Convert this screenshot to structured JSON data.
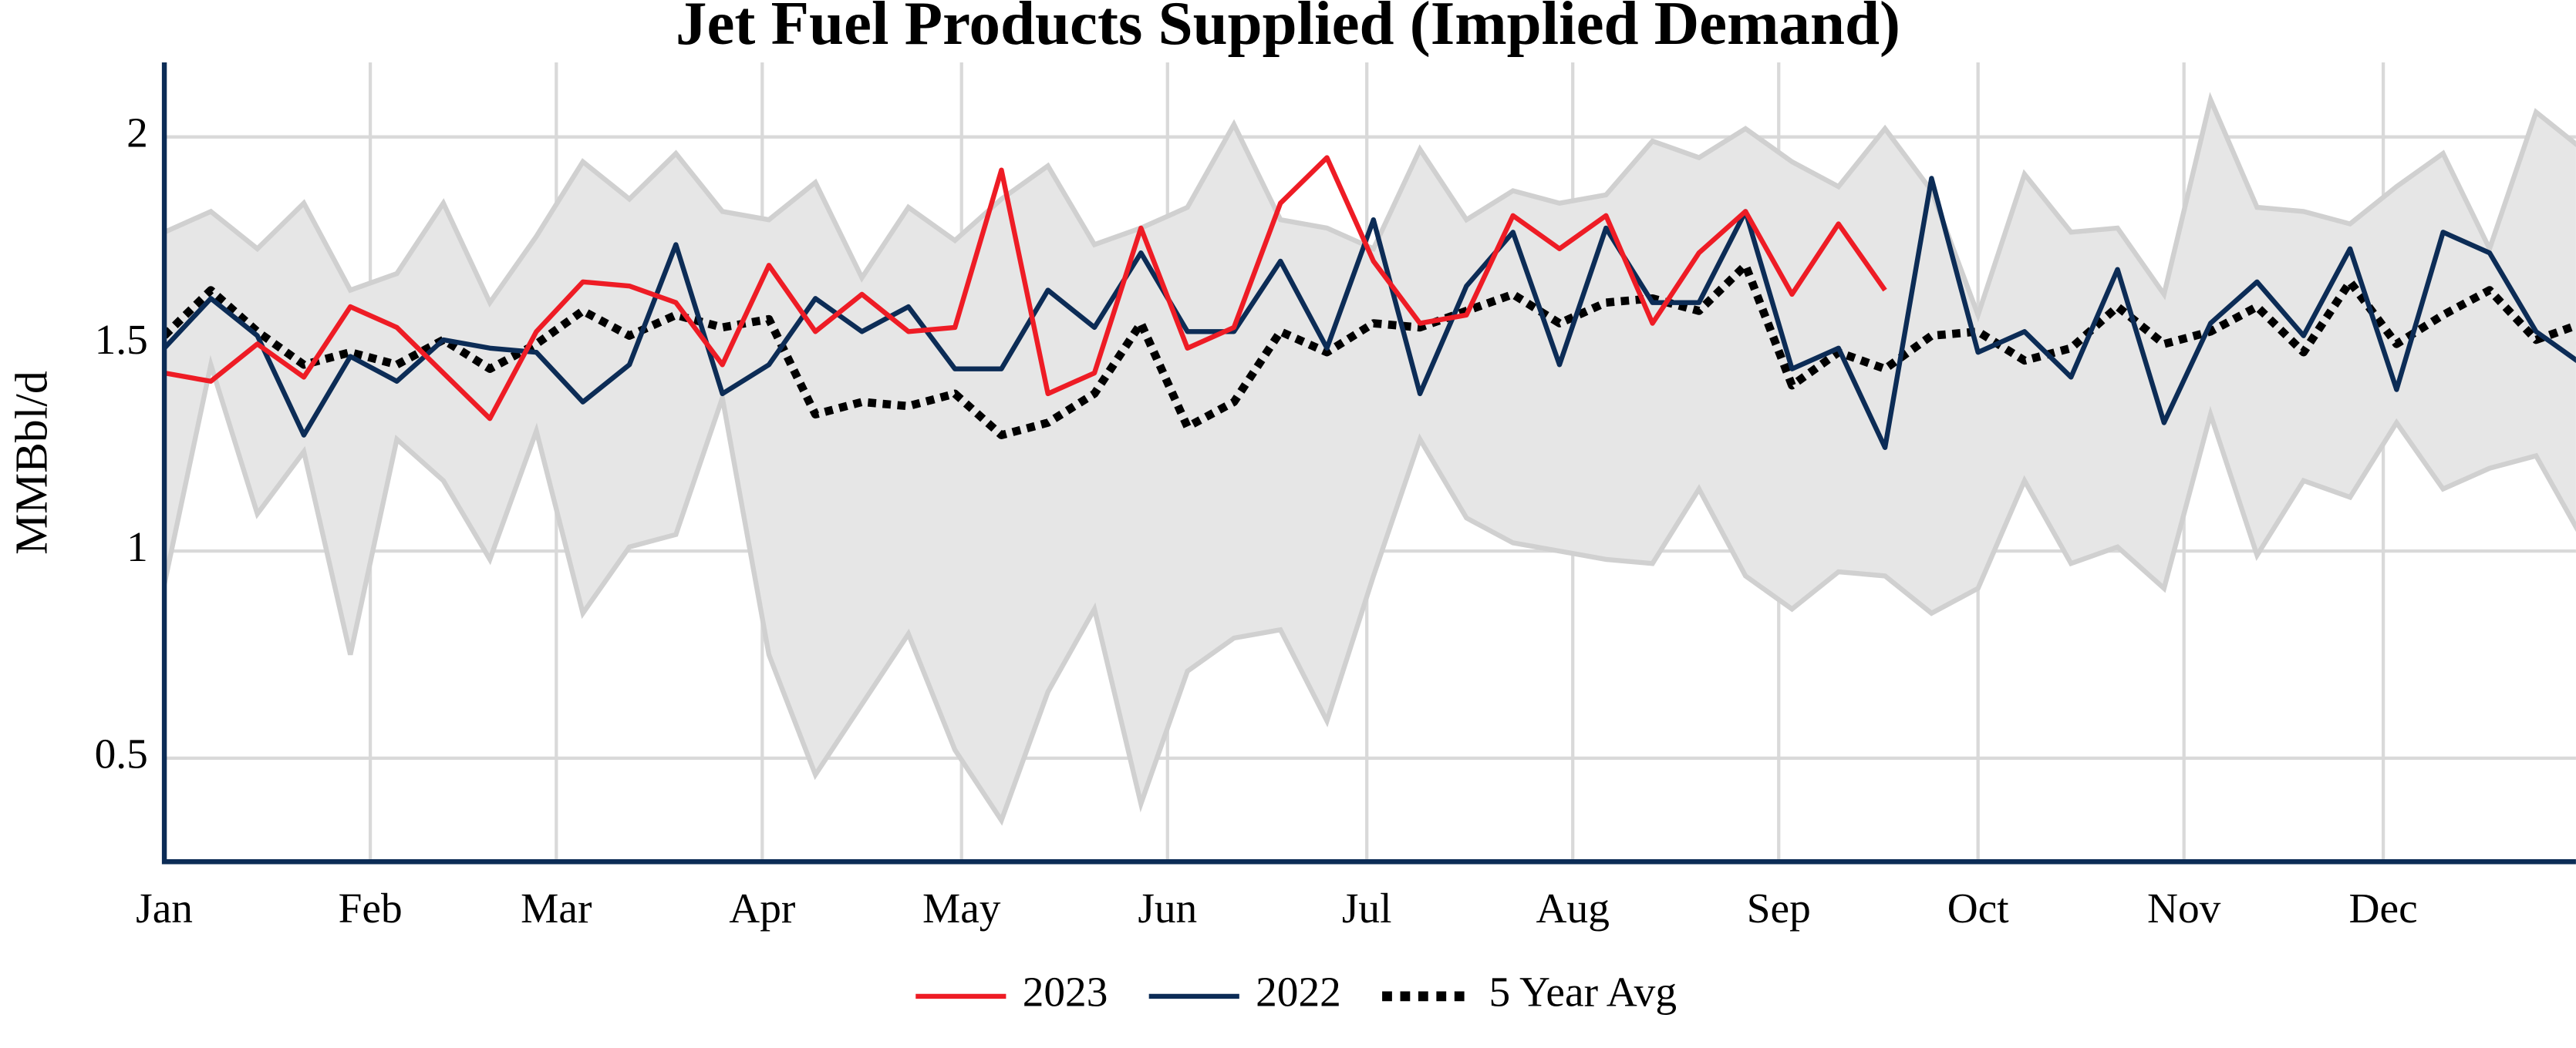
{
  "chart_data": {
    "type": "line",
    "title": "Jet Fuel Products Supplied (Implied Demand)",
    "y_label": "MMBbl/d",
    "x": [
      0,
      7,
      14,
      21,
      28,
      35,
      42,
      49,
      56,
      63,
      70,
      77,
      84,
      91,
      98,
      105,
      112,
      119,
      126,
      133,
      140,
      147,
      154,
      161,
      168,
      175,
      182,
      189,
      196,
      203,
      210,
      217,
      224,
      231,
      238,
      245,
      252,
      259,
      266,
      273,
      280,
      287,
      294,
      301,
      308,
      315,
      322,
      329,
      336,
      343,
      350,
      357,
      364
    ],
    "xlim": [
      0,
      363
    ],
    "xticks": [
      {
        "value": 0,
        "label": "Jan"
      },
      {
        "value": 31,
        "label": "Feb"
      },
      {
        "value": 59,
        "label": "Mar"
      },
      {
        "value": 90,
        "label": "Apr"
      },
      {
        "value": 120,
        "label": "May"
      },
      {
        "value": 151,
        "label": "Jun"
      },
      {
        "value": 181,
        "label": "Jul"
      },
      {
        "value": 212,
        "label": "Aug"
      },
      {
        "value": 243,
        "label": "Sep"
      },
      {
        "value": 273,
        "label": "Oct"
      },
      {
        "value": 304,
        "label": "Nov"
      },
      {
        "value": 334,
        "label": "Dec"
      }
    ],
    "ylim": [
      0.25,
      2.18
    ],
    "yticks": [
      0.5,
      1,
      1.5,
      2
    ],
    "grid": true,
    "band": {
      "color": "#e6e6e6",
      "edge_color": "#d0d0d0",
      "upper": [
        1.77,
        1.82,
        1.73,
        1.84,
        1.63,
        1.67,
        1.84,
        1.6,
        1.76,
        1.94,
        1.85,
        1.96,
        1.82,
        1.8,
        1.89,
        1.66,
        1.83,
        1.75,
        1.85,
        1.93,
        1.74,
        1.78,
        1.83,
        2.03,
        1.8,
        1.78,
        1.73,
        1.97,
        1.8,
        1.87,
        1.84,
        1.86,
        1.99,
        1.95,
        2.02,
        1.94,
        1.88,
        2.02,
        1.87,
        1.57,
        1.91,
        1.77,
        1.78,
        1.62,
        2.09,
        1.83,
        1.82,
        1.79,
        1.88,
        1.96,
        1.73,
        2.06,
        1.97
      ],
      "lower": [
        0.92,
        1.45,
        1.09,
        1.24,
        0.75,
        1.27,
        1.17,
        0.98,
        1.29,
        0.85,
        1.01,
        1.04,
        1.37,
        0.75,
        0.46,
        0.63,
        0.8,
        0.52,
        0.35,
        0.66,
        0.86,
        0.39,
        0.71,
        0.79,
        0.81,
        0.59,
        0.94,
        1.27,
        1.08,
        1.02,
        1.0,
        0.98,
        0.97,
        1.15,
        0.94,
        0.86,
        0.95,
        0.94,
        0.85,
        0.91,
        1.17,
        0.97,
        1.01,
        0.91,
        1.33,
        0.99,
        1.17,
        1.13,
        1.31,
        1.15,
        1.2,
        1.23,
        1.03
      ]
    },
    "series": [
      {
        "name": "2023",
        "color": "#ee1c25",
        "dashed": false,
        "values": [
          1.43,
          1.41,
          1.5,
          1.42,
          1.59,
          1.54,
          1.43,
          1.32,
          1.53,
          1.65,
          1.64,
          1.6,
          1.45,
          1.69,
          1.53,
          1.62,
          1.53,
          1.54,
          1.92,
          1.38,
          1.43,
          1.78,
          1.49,
          1.54,
          1.84,
          1.95,
          1.7,
          1.55,
          1.57,
          1.81,
          1.73,
          1.81,
          1.55,
          1.72,
          1.82,
          1.62,
          1.79,
          1.63,
          null,
          null,
          null,
          null,
          null,
          null,
          null,
          null,
          null,
          null,
          null,
          null,
          null,
          null,
          null
        ]
      },
      {
        "name": "2022",
        "color": "#0c2c56",
        "dashed": false,
        "values": [
          1.49,
          1.61,
          1.52,
          1.28,
          1.47,
          1.41,
          1.51,
          1.49,
          1.48,
          1.36,
          1.45,
          1.74,
          1.38,
          1.45,
          1.61,
          1.53,
          1.59,
          1.44,
          1.44,
          1.63,
          1.54,
          1.72,
          1.53,
          1.53,
          1.7,
          1.49,
          1.8,
          1.38,
          1.64,
          1.77,
          1.45,
          1.78,
          1.6,
          1.6,
          1.82,
          1.44,
          1.49,
          1.25,
          1.9,
          1.48,
          1.53,
          1.42,
          1.68,
          1.31,
          1.55,
          1.65,
          1.52,
          1.73,
          1.39,
          1.77,
          1.72,
          1.53,
          1.45
        ]
      },
      {
        "name": "5 Year Avg",
        "color": "#000000",
        "dashed": true,
        "values": [
          1.52,
          1.63,
          1.53,
          1.45,
          1.48,
          1.45,
          1.51,
          1.44,
          1.5,
          1.58,
          1.52,
          1.57,
          1.54,
          1.56,
          1.33,
          1.36,
          1.35,
          1.38,
          1.28,
          1.31,
          1.38,
          1.55,
          1.3,
          1.36,
          1.53,
          1.48,
          1.55,
          1.54,
          1.58,
          1.62,
          1.55,
          1.6,
          1.61,
          1.58,
          1.69,
          1.4,
          1.48,
          1.44,
          1.52,
          1.53,
          1.46,
          1.49,
          1.59,
          1.5,
          1.53,
          1.59,
          1.48,
          1.65,
          1.5,
          1.57,
          1.63,
          1.51,
          1.55
        ]
      }
    ]
  }
}
